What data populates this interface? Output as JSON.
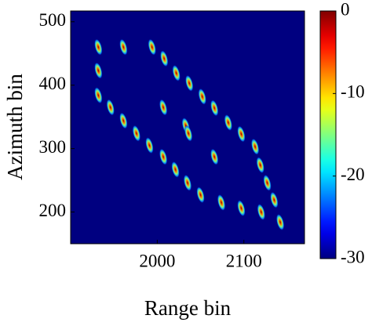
{
  "chart_data": {
    "type": "heatmap",
    "colormap": "jet",
    "xlabel": "Range bin",
    "ylabel": "Azimuth bin",
    "xlim": [
      1900,
      2170
    ],
    "ylim": [
      150,
      517
    ],
    "xticks": [
      2000,
      2100
    ],
    "yticks": [
      200,
      300,
      400,
      500
    ],
    "clim": [
      -30,
      0
    ],
    "cticks": [
      0,
      -10,
      -20,
      -30
    ],
    "x": [
      1932,
      1961,
      1994,
      1932,
      1932,
      1946,
      1961,
      1976,
      1991,
      2007,
      2021,
      2035,
      2050,
      2074,
      2097,
      2120,
      2142,
      2008,
      2022,
      2037,
      2052,
      2066,
      2082,
      2097,
      2113,
      2119,
      2127,
      2135,
      2007,
      2033,
      2036,
      2066
    ],
    "y": [
      460,
      460,
      460,
      423,
      384,
      365,
      344,
      324,
      305,
      287,
      267,
      246,
      227,
      215,
      206,
      200,
      184,
      442,
      419,
      403,
      382,
      364,
      341,
      323,
      303,
      274,
      246,
      219,
      365,
      336,
      324,
      287
    ],
    "values": [
      0,
      0,
      0,
      0,
      0,
      0,
      0,
      0,
      0,
      0,
      0,
      0,
      0,
      0,
      0,
      0,
      0,
      0,
      0,
      0,
      0,
      0,
      0,
      0,
      0,
      0,
      0,
      0,
      0,
      0,
      0,
      0
    ]
  }
}
